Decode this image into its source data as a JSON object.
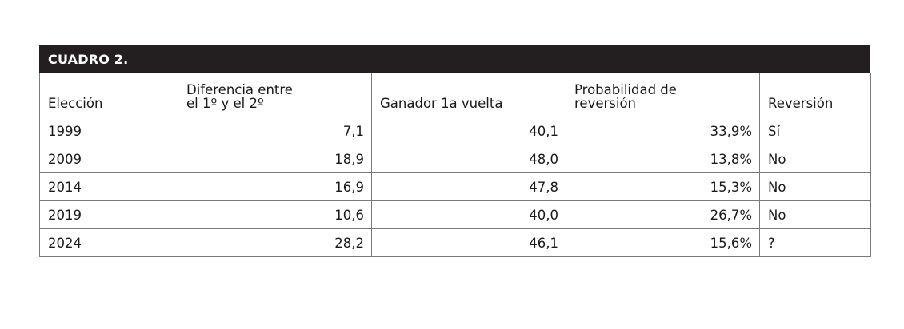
{
  "table": {
    "title": "CUADRO 2.",
    "headers": {
      "eleccion": "Elección",
      "diferencia_line1": "Diferencia entre",
      "diferencia_line2": "el 1º y el 2º",
      "ganador": "Ganador 1a vuelta",
      "probabilidad_line1": "Probabilidad de",
      "probabilidad_line2": "reversión",
      "reversion": "Reversión"
    },
    "rows": [
      {
        "eleccion": "1999",
        "diferencia": "7,1",
        "ganador": "40,1",
        "probabilidad": "33,9%",
        "reversion": "Sí"
      },
      {
        "eleccion": "2009",
        "diferencia": "18,9",
        "ganador": "48,0",
        "probabilidad": "13,8%",
        "reversion": "No"
      },
      {
        "eleccion": "2014",
        "diferencia": "16,9",
        "ganador": "47,8",
        "probabilidad": "15,3%",
        "reversion": "No"
      },
      {
        "eleccion": "2019",
        "diferencia": "10,6",
        "ganador": "40,0",
        "probabilidad": "26,7%",
        "reversion": "No"
      },
      {
        "eleccion": "2024",
        "diferencia": "28,2",
        "ganador": "46,1",
        "probabilidad": "15,6%",
        "reversion": "?"
      }
    ]
  }
}
